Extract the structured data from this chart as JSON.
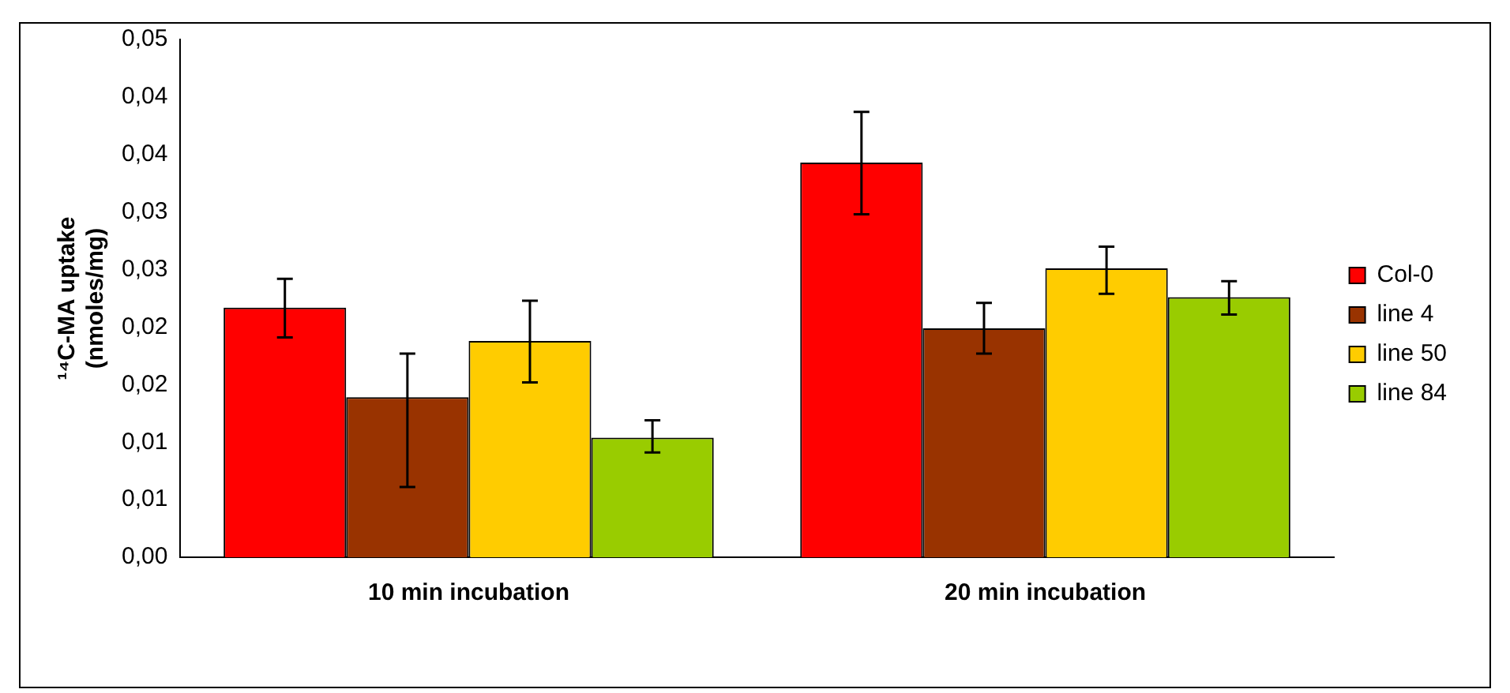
{
  "chart_data": {
    "type": "bar",
    "ylabel": "¹⁴C-MA uptake (nmoles/mg)",
    "categories": [
      "10 min incubation",
      "20 min incubation"
    ],
    "series": [
      {
        "name": "Col-0",
        "color": "#ff0000",
        "values": [
          0.0217,
          0.0343
        ],
        "errors": [
          [
            0.0191,
            0.0242
          ],
          [
            0.0298,
            0.0387
          ]
        ]
      },
      {
        "name": "line 4",
        "color": "#993300",
        "values": [
          0.0139,
          0.0199
        ],
        "errors": [
          [
            0.0061,
            0.0177
          ],
          [
            0.0177,
            0.0221
          ]
        ]
      },
      {
        "name": "line 50",
        "color": "#ffcc00",
        "values": [
          0.0188,
          0.0251
        ],
        "errors": [
          [
            0.0152,
            0.0223
          ],
          [
            0.0229,
            0.027
          ]
        ]
      },
      {
        "name": "line 84",
        "color": "#99cc00",
        "values": [
          0.0104,
          0.0226
        ],
        "errors": [
          [
            0.0091,
            0.0119
          ],
          [
            0.0211,
            0.024
          ]
        ]
      }
    ],
    "ylim": [
      0,
      0.045
    ],
    "yticks": [
      {
        "value": 0,
        "label": "0,00"
      },
      {
        "value": 0.005,
        "label": "0,01"
      },
      {
        "value": 0.01,
        "label": "0,01"
      },
      {
        "value": 0.015,
        "label": "0,02"
      },
      {
        "value": 0.02,
        "label": "0,02"
      },
      {
        "value": 0.025,
        "label": "0,03"
      },
      {
        "value": 0.03,
        "label": "0,03"
      },
      {
        "value": 0.035,
        "label": "0,04"
      },
      {
        "value": 0.04,
        "label": "0,04"
      },
      {
        "value": 0.045,
        "label": "0,05"
      }
    ],
    "grid": false,
    "legend": "right"
  }
}
